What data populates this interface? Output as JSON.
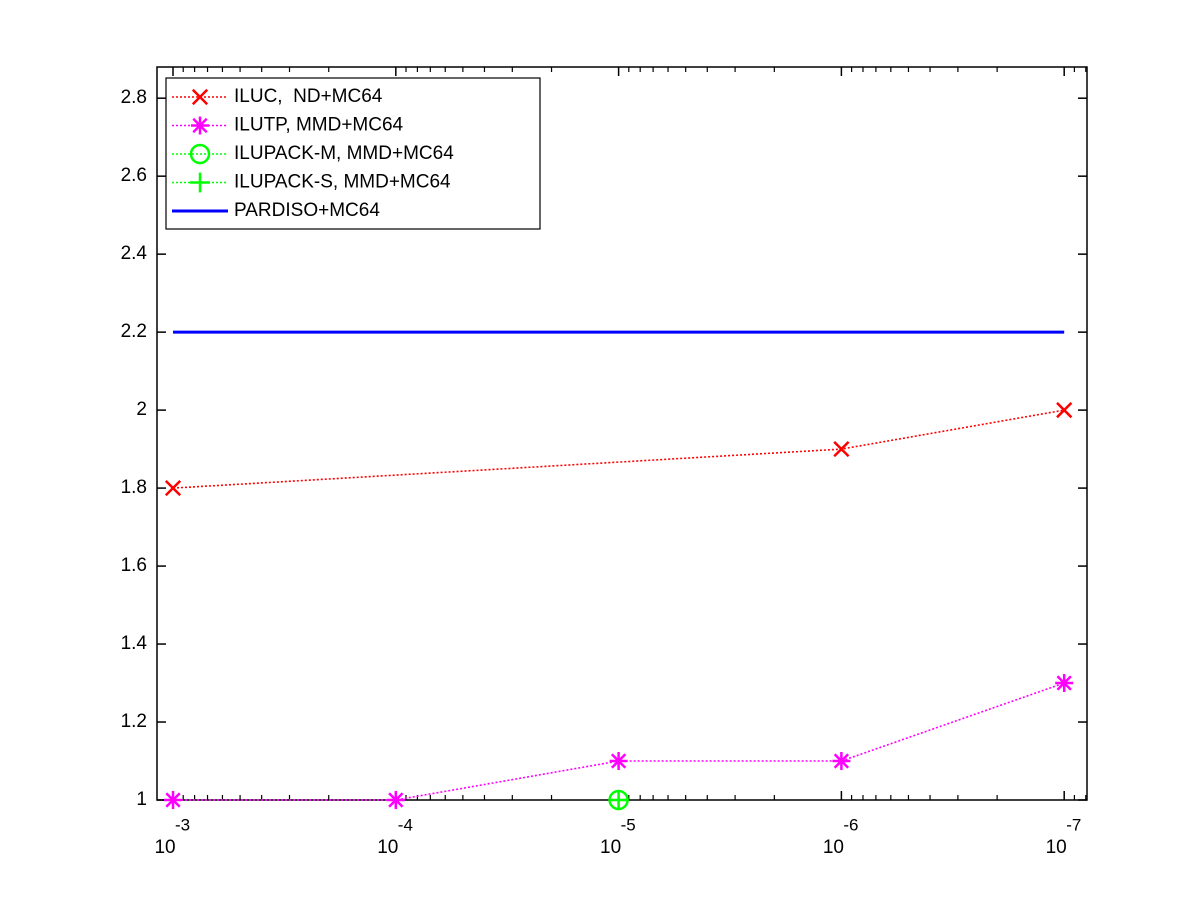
{
  "chart_data": {
    "type": "line",
    "xscale": "log",
    "xlim": [
      0.00118,
      7.9e-08
    ],
    "ylim": [
      1,
      2.88
    ],
    "xticks": [
      {
        "value": 0.001,
        "label": "10",
        "exponent": "-3"
      },
      {
        "value": 0.0001,
        "label": "10",
        "exponent": "-4"
      },
      {
        "value": 1e-05,
        "label": "10",
        "exponent": "-5"
      },
      {
        "value": 1e-06,
        "label": "10",
        "exponent": "-6"
      },
      {
        "value": 1e-07,
        "label": "10",
        "exponent": "-7"
      }
    ],
    "yticks": [
      1,
      1.2,
      1.4,
      1.6,
      1.8,
      2,
      2.2,
      2.4,
      2.6,
      2.8
    ],
    "legend": "upper left",
    "series": [
      {
        "name": "ILUC,  ND+MC64",
        "color": "#ff0000",
        "marker": "x",
        "linestyle": "dotted",
        "x": [
          0.001,
          1e-06,
          1e-07
        ],
        "values": [
          1.8,
          1.9,
          2.0
        ]
      },
      {
        "name": "ILUTP, MMD+MC64",
        "color": "#ff00ff",
        "marker": "asterisk",
        "linestyle": "dotted",
        "x": [
          0.001,
          0.0001,
          1e-05,
          1e-06,
          1e-07
        ],
        "values": [
          1.0,
          1.0,
          1.1,
          1.1,
          1.3
        ]
      },
      {
        "name": "ILUPACK-M, MMD+MC64",
        "color": "#00ff00",
        "marker": "circle",
        "linestyle": "dotted",
        "x": [
          1e-05
        ],
        "values": [
          1.0
        ]
      },
      {
        "name": "ILUPACK-S, MMD+MC64",
        "color": "#00ff00",
        "marker": "plus",
        "linestyle": "dotted",
        "x": [
          1e-05
        ],
        "values": [
          1.0
        ]
      },
      {
        "name": "PARDISO+MC64",
        "color": "#0000ff",
        "marker": "none",
        "linestyle": "solid",
        "x": [
          0.001,
          1e-07
        ],
        "values": [
          2.2,
          2.2
        ]
      }
    ]
  }
}
